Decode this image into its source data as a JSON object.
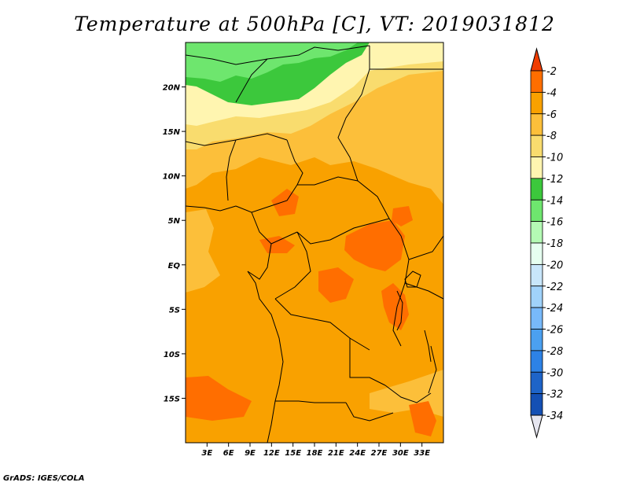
{
  "title": "Temperature at 500hPa [C], VT: 2019031812",
  "footer": "GrADS: IGES/COLA",
  "map": {
    "lat_range": [
      -20,
      25
    ],
    "lon_range": [
      0,
      36
    ],
    "lat_ticks": [
      "20N",
      "15N",
      "10N",
      "5N",
      "EQ",
      "5S",
      "10S",
      "15S"
    ],
    "lon_ticks": [
      "3E",
      "6E",
      "9E",
      "12E",
      "15E",
      "18E",
      "21E",
      "24E",
      "27E",
      "30E",
      "33E"
    ]
  },
  "colorbar": {
    "labels": [
      "-2",
      "-4",
      "-6",
      "-8",
      "-10",
      "-12",
      "-14",
      "-16",
      "-18",
      "-20",
      "-22",
      "-24",
      "-26",
      "-28",
      "-30",
      "-32",
      "-34"
    ],
    "colors": [
      "#f03c00",
      "#ff6e00",
      "#f9a100",
      "#fcbf3a",
      "#f9dc6e",
      "#fff5b0",
      "#3cc83c",
      "#6ee66e",
      "#b4fab4",
      "#e6fff0",
      "#c8e6fa",
      "#a0d2fa",
      "#78b9fa",
      "#4ba0f0",
      "#2d82e6",
      "#1e64c8",
      "#1450b4",
      "#0a0a82"
    ],
    "top_color": "#f03c00",
    "bottom_color": "#e6e6f0"
  }
}
